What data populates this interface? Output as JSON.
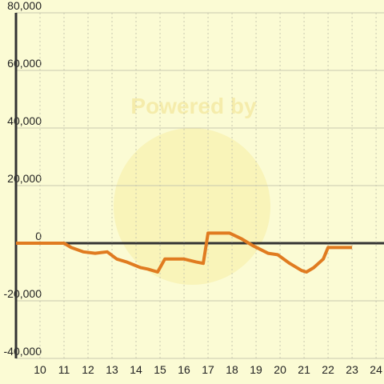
{
  "chart_data": {
    "type": "line",
    "watermark": "Powered by",
    "x": [
      9,
      11,
      11.3,
      11.8,
      12.3,
      12.8,
      13.2,
      13.6,
      14.2,
      14.5,
      14.9,
      15.2,
      16.0,
      16.5,
      16.8,
      17.0,
      17.9,
      18.4,
      18.9,
      19.5,
      19.9,
      20.4,
      20.9,
      21.1,
      21.4,
      21.8,
      22.0,
      23.0
    ],
    "series": [
      {
        "color": "#e07b20",
        "values": [
          0,
          0,
          -1500,
          -3000,
          -3500,
          -3000,
          -5500,
          -6500,
          -8500,
          -9000,
          -10000,
          -5500,
          -5500,
          -6500,
          -7000,
          3500,
          3500,
          1500,
          -1000,
          -3500,
          -4000,
          -7000,
          -9500,
          -10000,
          -8500,
          -5500,
          -1500,
          -1500
        ]
      }
    ],
    "xlim": [
      9,
      24.33
    ],
    "xticks": [
      10,
      11,
      12,
      13,
      14,
      15,
      16,
      17,
      18,
      19,
      20,
      21,
      22,
      23,
      24
    ],
    "ylim": [
      -40000,
      80000
    ],
    "yticks": [
      {
        "value": -40000,
        "label": "-40,000"
      },
      {
        "value": -20000,
        "label": "-20,000"
      },
      0,
      {
        "value": 20000,
        "label": "20,000"
      },
      {
        "value": 40000,
        "label": "40,000"
      },
      {
        "value": 60000,
        "label": "60,000"
      },
      {
        "value": 80000,
        "label": "80,000"
      }
    ],
    "grid": true
  }
}
